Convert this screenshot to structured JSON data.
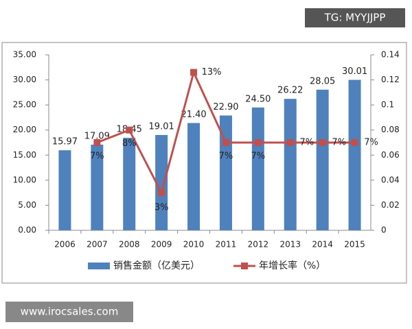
{
  "chart_data": {
    "type": "bar_line",
    "categories": [
      "2006",
      "2007",
      "2008",
      "2009",
      "2010",
      "2011",
      "2012",
      "2013",
      "2014",
      "2015"
    ],
    "series": [
      {
        "name": "销售金额（亿美元）",
        "color": "#4f81bd",
        "type": "bar",
        "values": [
          15.97,
          17.09,
          18.45,
          19.01,
          21.4,
          22.9,
          24.5,
          26.22,
          28.05,
          30.01
        ],
        "value_labels": [
          "15.97",
          "17.09",
          "18.45",
          "19.01",
          "21.40",
          "22.90",
          "24.50",
          "26.22",
          "28.05",
          "30.01"
        ]
      },
      {
        "name": "年增长率（%）",
        "color": "#c0504d",
        "type": "line",
        "axis": "y2",
        "values": [
          null,
          0.07,
          0.08,
          0.03,
          0.126,
          0.07,
          0.07,
          0.07,
          0.07,
          0.07
        ],
        "value_labels": [
          null,
          "7%",
          "8%",
          "3%",
          "13%",
          "7%",
          "7%",
          "7%",
          "7%",
          "7%"
        ]
      }
    ],
    "ylim": [
      0,
      35
    ],
    "yticks": [
      {
        "value": 0,
        "label": "0.00"
      },
      {
        "value": 5,
        "label": "5.00"
      },
      {
        "value": 10,
        "label": "10.00"
      },
      {
        "value": 15,
        "label": "15.00"
      },
      {
        "value": 20,
        "label": "20.00"
      },
      {
        "value": 25,
        "label": "25.00"
      },
      {
        "value": 30,
        "label": "30.00"
      },
      {
        "value": 35,
        "label": "35.00"
      }
    ],
    "y2lim": [
      0,
      0.14
    ],
    "y2ticks": [
      0,
      0.02,
      0.04,
      0.06,
      0.08,
      0.1,
      0.12,
      0.14
    ],
    "grid": false,
    "legend": "bottom",
    "annotations": [
      "TG: MYYJJPP",
      "www.irocsales.com"
    ]
  }
}
